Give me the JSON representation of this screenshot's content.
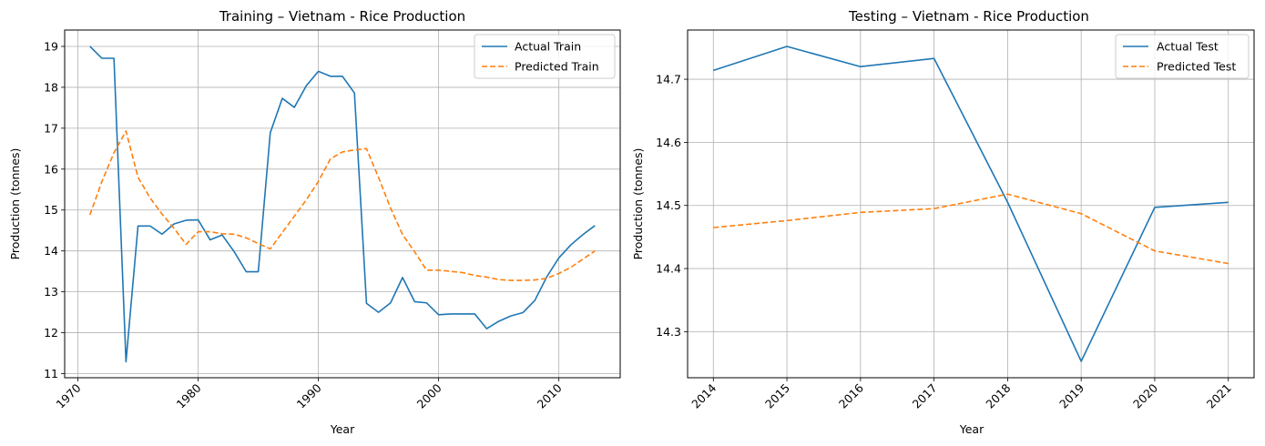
{
  "chart_data": [
    {
      "type": "line",
      "title": "Training – Vietnam - Rice Production",
      "xlabel": "Year",
      "ylabel": "Production (tonnes)",
      "xlim": [
        1968.9,
        2015.1
      ],
      "ylim": [
        10.9,
        19.4
      ],
      "xticks": [
        1970,
        1980,
        1990,
        2000,
        2010
      ],
      "yticks": [
        11,
        12,
        13,
        14,
        15,
        16,
        17,
        18,
        19
      ],
      "xtick_rotation": -45,
      "grid": true,
      "legend_position": "top-right",
      "series": [
        {
          "name": "Actual Train",
          "color": "#1f77b4",
          "dash": "solid",
          "x": [
            1971,
            1972,
            1973,
            1974,
            1975,
            1976,
            1977,
            1978,
            1979,
            1980,
            1981,
            1982,
            1983,
            1984,
            1985,
            1986,
            1987,
            1988,
            1989,
            1990,
            1991,
            1992,
            1993,
            1994,
            1995,
            1996,
            1997,
            1998,
            1999,
            2000,
            2001,
            2002,
            2003,
            2004,
            2005,
            2006,
            2007,
            2008,
            2009,
            2010,
            2011,
            2012,
            2013
          ],
          "y": [
            19.0,
            18.71,
            18.71,
            11.29,
            14.61,
            14.61,
            14.41,
            14.66,
            14.75,
            14.76,
            14.27,
            14.39,
            13.98,
            13.49,
            13.49,
            16.89,
            17.73,
            17.51,
            18.04,
            18.39,
            18.27,
            18.27,
            17.86,
            12.72,
            12.5,
            12.73,
            13.35,
            12.76,
            12.73,
            12.44,
            12.46,
            12.46,
            12.46,
            12.1,
            12.28,
            12.41,
            12.49,
            12.79,
            13.37,
            13.83,
            14.15,
            14.4,
            14.62
          ]
        },
        {
          "name": "Predicted Train",
          "color": "#ff7f0e",
          "dash": "dashed",
          "x": [
            1971,
            1972,
            1973,
            1974,
            1975,
            1976,
            1977,
            1978,
            1979,
            1980,
            1981,
            1982,
            1983,
            1984,
            1985,
            1986,
            1987,
            1988,
            1989,
            1990,
            1991,
            1992,
            1993,
            1994,
            1995,
            1996,
            1997,
            1998,
            1999,
            2000,
            2001,
            2002,
            2003,
            2004,
            2005,
            2006,
            2007,
            2008,
            2009,
            2010,
            2011,
            2012,
            2013
          ],
          "y": [
            14.88,
            15.7,
            16.4,
            16.93,
            15.8,
            15.3,
            14.9,
            14.55,
            14.16,
            14.47,
            14.47,
            14.42,
            14.41,
            14.32,
            14.18,
            14.05,
            14.45,
            14.85,
            15.25,
            15.7,
            16.25,
            16.42,
            16.47,
            16.5,
            15.8,
            15.05,
            14.4,
            13.98,
            13.53,
            13.53,
            13.5,
            13.47,
            13.4,
            13.36,
            13.3,
            13.28,
            13.28,
            13.29,
            13.33,
            13.45,
            13.6,
            13.8,
            14.0
          ]
        }
      ]
    },
    {
      "type": "line",
      "title": "Testing – Vietnam - Rice Production",
      "xlabel": "Year",
      "ylabel": "Production (tonnes)",
      "xlim": [
        2013.65,
        2021.35
      ],
      "ylim": [
        14.227,
        14.778
      ],
      "xticks": [
        2014,
        2015,
        2016,
        2017,
        2018,
        2019,
        2020,
        2021
      ],
      "yticks": [
        14.3,
        14.4,
        14.5,
        14.6,
        14.7
      ],
      "yticks_labels": [
        "14.3",
        "14.4",
        "14.5",
        "14.6",
        "14.7"
      ],
      "xtick_rotation": -45,
      "grid": true,
      "legend_position": "top-right",
      "series": [
        {
          "name": "Actual Test",
          "color": "#1f77b4",
          "dash": "solid",
          "x": [
            2014,
            2015,
            2016,
            2017,
            2018,
            2019,
            2020,
            2021
          ],
          "y": [
            14.714,
            14.752,
            14.72,
            14.733,
            14.505,
            14.253,
            14.497,
            14.505
          ]
        },
        {
          "name": "Predicted Test",
          "color": "#ff7f0e",
          "dash": "dashed",
          "x": [
            2014,
            2015,
            2016,
            2017,
            2018,
            2019,
            2020,
            2021
          ],
          "y": [
            14.465,
            14.476,
            14.489,
            14.495,
            14.518,
            14.487,
            14.428,
            14.408
          ]
        }
      ]
    }
  ]
}
